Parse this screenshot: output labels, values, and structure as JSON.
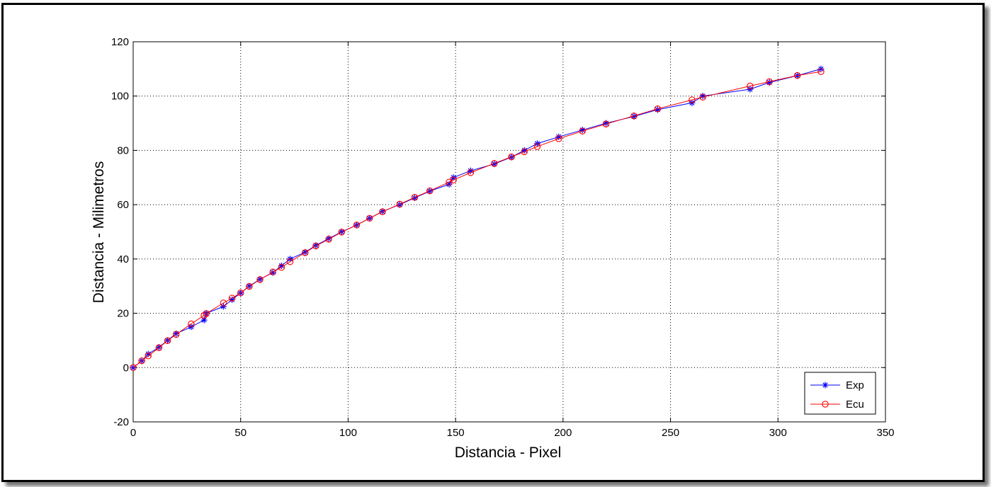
{
  "chart_data": {
    "type": "line",
    "title": "",
    "xlabel": "Distancia - Pixel",
    "ylabel": "Distancia - Milimetros",
    "xlim": [
      0,
      350
    ],
    "ylim": [
      -20,
      120
    ],
    "xticks": [
      0,
      50,
      100,
      150,
      200,
      250,
      300,
      350
    ],
    "yticks": [
      -20,
      0,
      20,
      40,
      60,
      80,
      100,
      120
    ],
    "grid": true,
    "legend_position": "bottom-right",
    "series": [
      {
        "name": "Exp",
        "color": "#0000ff",
        "marker": "asterisk",
        "x": [
          0,
          4,
          7,
          12,
          16,
          20,
          27,
          33,
          34,
          42,
          46,
          50,
          54,
          59,
          65,
          69,
          73,
          80,
          85,
          91,
          97,
          104,
          110,
          116,
          124,
          131,
          138,
          147,
          149,
          157,
          168,
          176,
          182,
          188,
          198,
          209,
          220,
          233,
          244,
          260,
          265,
          287,
          296,
          309,
          320
        ],
        "y": [
          0,
          2.5,
          5,
          7.5,
          10,
          12.5,
          15,
          17.5,
          20,
          22.5,
          25,
          27.5,
          30,
          32.5,
          35,
          37.5,
          40,
          42.5,
          45,
          47.5,
          50,
          52.5,
          55,
          57.5,
          60,
          62.5,
          65,
          67.5,
          70,
          72.5,
          75,
          77.5,
          80,
          82.5,
          85,
          87.5,
          90,
          92.5,
          95,
          97.5,
          100,
          102.5,
          105,
          107.5,
          110
        ]
      },
      {
        "name": "Ecu",
        "color": "#ff0000",
        "marker": "circle",
        "x": [
          0,
          4,
          7,
          12,
          16,
          20,
          27,
          33,
          34,
          42,
          46,
          50,
          54,
          59,
          65,
          69,
          73,
          80,
          85,
          91,
          97,
          104,
          110,
          116,
          124,
          131,
          138,
          147,
          149,
          157,
          168,
          176,
          182,
          188,
          198,
          209,
          220,
          233,
          244,
          260,
          265,
          287,
          296,
          309,
          320
        ],
        "y": [
          0,
          2.5,
          4.3,
          7.3,
          9.9,
          12.2,
          16.1,
          19.2,
          19.9,
          23.8,
          25.6,
          27.5,
          29.9,
          32.4,
          35.2,
          36.9,
          39.0,
          42.3,
          44.8,
          47.3,
          49.9,
          52.5,
          55.0,
          57.4,
          60.2,
          62.7,
          65.1,
          68.3,
          69.1,
          71.8,
          75.2,
          77.6,
          79.5,
          81.4,
          84.3,
          87.1,
          89.7,
          92.7,
          95.3,
          98.6,
          99.6,
          103.7,
          105.3,
          107.6,
          109.0
        ]
      }
    ]
  }
}
